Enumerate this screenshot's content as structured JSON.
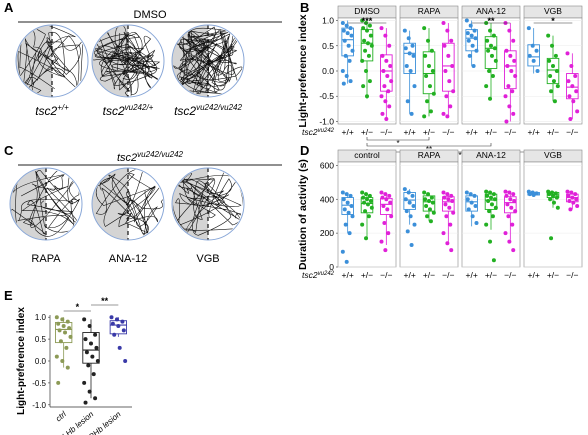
{
  "panel_labels": {
    "A": "A",
    "B": "B",
    "C": "C",
    "D": "D",
    "E": "E"
  },
  "colors": {
    "wt": "#3b8fd9",
    "het": "#22b022",
    "hom": "#e020d8",
    "ctrl": "#8c9a56",
    "lhb": "#222222",
    "rhb": "#3a3aa8",
    "strip": "#e6e6e6",
    "arena_shade": "#d4d4d4",
    "arena_border": "#8aa8d8"
  },
  "panel_a": {
    "header": "DMSO",
    "arenas": [
      {
        "genotype_base": "tsc2",
        "genotype_sup": "+/+"
      },
      {
        "genotype_base": "tsc2",
        "genotype_sup": "vu242/+"
      },
      {
        "genotype_base": "tsc2",
        "genotype_sup": "vu242/vu242"
      }
    ]
  },
  "panel_c": {
    "header_base": "tsc2",
    "header_sup": "vu242/vu242",
    "arenas": [
      {
        "label": "RAPA"
      },
      {
        "label": "ANA-12"
      },
      {
        "label": "VGB"
      }
    ]
  },
  "chart_data": [
    {
      "id": "B",
      "type": "box-strip",
      "ylabel": "Light-preference index",
      "ylim": [
        -1.05,
        1.05
      ],
      "yticks": [
        "1.0",
        "0.5",
        "0.0",
        "-0.5",
        "-1.0"
      ],
      "ytick_values": [
        1.0,
        0.5,
        0.0,
        -0.5,
        -1.0
      ],
      "genotype_row_label": "tsc2",
      "genotype_row_sup": "vu242",
      "categories": [
        "+/+",
        "+/−",
        "−/−"
      ],
      "facets": [
        {
          "title": "DMSO",
          "boxes": [
            {
              "q1": 0.3,
              "median": 0.62,
              "q3": 0.85,
              "lo": -0.25,
              "hi": 1.0
            },
            {
              "q1": 0.2,
              "median": 0.55,
              "q3": 0.82,
              "lo": -0.55,
              "hi": 1.0
            },
            {
              "q1": -0.4,
              "median": 0.0,
              "q3": 0.32,
              "lo": -0.95,
              "hi": 0.85
            }
          ],
          "points": [
            [
              0.95,
              0.9,
              0.85,
              0.8,
              0.75,
              0.7,
              0.6,
              0.5,
              0.4,
              0.3,
              0.2,
              0.0,
              -0.1,
              -0.2,
              -0.25
            ],
            [
              1.0,
              0.95,
              0.9,
              0.85,
              0.8,
              0.7,
              0.6,
              0.55,
              0.5,
              0.4,
              0.3,
              0.2,
              0.0,
              -0.2,
              -0.3,
              -0.5
            ],
            [
              0.85,
              0.7,
              0.5,
              0.3,
              0.2,
              0.1,
              0.0,
              -0.1,
              -0.2,
              -0.3,
              -0.4,
              -0.5,
              -0.6,
              -0.7,
              -0.85,
              -0.95
            ]
          ],
          "annotations": [
            {
              "text": "***",
              "from": 0,
              "to": 2
            }
          ]
        },
        {
          "title": "RAPA",
          "boxes": [
            {
              "q1": -0.05,
              "median": 0.35,
              "q3": 0.55,
              "lo": -0.85,
              "hi": 0.8
            },
            {
              "q1": -0.45,
              "median": -0.05,
              "q3": 0.38,
              "lo": -0.9,
              "hi": 0.85
            },
            {
              "q1": -0.4,
              "median": 0.1,
              "q3": 0.55,
              "lo": -0.9,
              "hi": 0.95
            }
          ],
          "points": [
            [
              0.8,
              0.65,
              0.5,
              0.45,
              0.35,
              0.3,
              0.1,
              0.0,
              -0.3,
              -0.6,
              -0.85
            ],
            [
              0.85,
              0.6,
              0.4,
              0.3,
              0.1,
              0.0,
              -0.1,
              -0.3,
              -0.45,
              -0.6,
              -0.8,
              -0.9
            ],
            [
              0.95,
              0.8,
              0.6,
              0.5,
              0.3,
              0.1,
              0.0,
              -0.2,
              -0.4,
              -0.5,
              -0.7,
              -0.85,
              -0.9
            ]
          ],
          "annotations": []
        },
        {
          "title": "ANA-12",
          "boxes": [
            {
              "q1": 0.4,
              "median": 0.65,
              "q3": 0.82,
              "lo": 0.1,
              "hi": 1.0
            },
            {
              "q1": 0.05,
              "median": 0.45,
              "q3": 0.68,
              "lo": -0.55,
              "hi": 0.95
            },
            {
              "q1": -0.35,
              "median": 0.1,
              "q3": 0.4,
              "lo": -1.0,
              "hi": 0.95
            }
          ],
          "points": [
            [
              1.0,
              0.9,
              0.8,
              0.75,
              0.7,
              0.65,
              0.6,
              0.5,
              0.4,
              0.3,
              0.1
            ],
            [
              0.95,
              0.8,
              0.7,
              0.6,
              0.5,
              0.45,
              0.4,
              0.3,
              0.2,
              0.0,
              -0.1,
              -0.3,
              -0.55
            ],
            [
              0.95,
              0.8,
              0.6,
              0.4,
              0.3,
              0.2,
              0.1,
              0.0,
              -0.1,
              -0.3,
              -0.4,
              -0.5,
              -0.7,
              -0.85,
              -1.0
            ]
          ],
          "annotations": [
            {
              "text": "**",
              "from": 0,
              "to": 2
            }
          ]
        },
        {
          "title": "VGB",
          "boxes": [
            {
              "q1": 0.1,
              "median": 0.28,
              "q3": 0.52,
              "lo": -0.05,
              "hi": 0.85
            },
            {
              "q1": -0.25,
              "median": 0.02,
              "q3": 0.25,
              "lo": -0.6,
              "hi": 0.7
            },
            {
              "q1": -0.55,
              "median": -0.32,
              "q3": -0.05,
              "lo": -0.95,
              "hi": 0.35
            }
          ],
          "points": [
            [
              0.85,
              0.5,
              0.4,
              0.3,
              0.2,
              0.0
            ],
            [
              0.7,
              0.5,
              0.3,
              0.2,
              0.1,
              0.0,
              -0.1,
              -0.2,
              -0.3,
              -0.4,
              -0.6
            ],
            [
              0.35,
              0.1,
              -0.1,
              -0.2,
              -0.3,
              -0.4,
              -0.5,
              -0.6,
              -0.8,
              -0.95
            ]
          ],
          "annotations": [
            {
              "text": "*",
              "from": 0,
              "to": 2
            }
          ]
        }
      ],
      "between_facet_annotations": [
        {
          "text": "*",
          "from_facet": 0,
          "to_facet": 1
        },
        {
          "text": "**",
          "from_facet": 0,
          "to_facet": 2
        },
        {
          "text": "*",
          "from_facet": 0,
          "to_facet": 3
        }
      ]
    },
    {
      "id": "D",
      "type": "box-strip",
      "ylabel": "Duration of activity (s)",
      "ylim": [
        0,
        620
      ],
      "yticks": [
        "600",
        "400",
        "200",
        "0"
      ],
      "ytick_values": [
        600,
        400,
        200,
        0
      ],
      "genotype_row_label": "tsc2",
      "genotype_row_sup": "vu242",
      "categories": [
        "+/+",
        "+/−",
        "−/−"
      ],
      "facets": [
        {
          "title": "control",
          "boxes": [
            {
              "q1": 310,
              "median": 365,
              "q3": 410,
              "lo": 200,
              "hi": 440
            },
            {
              "q1": 320,
              "median": 375,
              "q3": 410,
              "lo": 170,
              "hi": 440
            },
            {
              "q1": 310,
              "median": 370,
              "q3": 405,
              "lo": 130,
              "hi": 440
            }
          ],
          "points": [
            [
              440,
              430,
              420,
              400,
              380,
              360,
              340,
              320,
              300,
              250,
              200,
              90,
              30
            ],
            [
              440,
              430,
              420,
              410,
              400,
              390,
              380,
              370,
              350,
              330,
              300,
              250,
              170
            ],
            [
              440,
              430,
              420,
              410,
              400,
              380,
              360,
              340,
              300,
              260,
              200,
              150,
              100
            ]
          ],
          "annotations": []
        },
        {
          "title": "RAPA",
          "boxes": [
            {
              "q1": 340,
              "median": 395,
              "q3": 440,
              "lo": 250,
              "hi": 460
            },
            {
              "q1": 330,
              "median": 385,
              "q3": 420,
              "lo": 270,
              "hi": 440
            },
            {
              "q1": 330,
              "median": 385,
              "q3": 415,
              "lo": 140,
              "hi": 440
            }
          ],
          "points": [
            [
              460,
              440,
              420,
              400,
              380,
              360,
              330,
              300,
              250,
              210,
              130
            ],
            [
              440,
              430,
              410,
              400,
              390,
              380,
              360,
              340,
              320,
              300,
              270
            ],
            [
              440,
              430,
              420,
              410,
              400,
              390,
              370,
              350,
              320,
              300,
              250,
              200,
              140,
              100
            ]
          ],
          "annotations": []
        },
        {
          "title": "ANA-12",
          "boxes": [
            {
              "q1": 330,
              "median": 385,
              "q3": 420,
              "lo": 240,
              "hi": 440
            },
            {
              "q1": 340,
              "median": 395,
              "q3": 430,
              "lo": 220,
              "hi": 445
            },
            {
              "q1": 320,
              "median": 380,
              "q3": 415,
              "lo": 160,
              "hi": 445
            }
          ],
          "points": [
            [
              440,
              430,
              420,
              400,
              380,
              360,
              340,
              300,
              260
            ],
            [
              445,
              440,
              430,
              420,
              410,
              400,
              390,
              370,
              350,
              330,
              300,
              250,
              150,
              40
            ],
            [
              445,
              440,
              430,
              420,
              400,
              390,
              370,
              350,
              330,
              300,
              250,
              200,
              150,
              100
            ]
          ],
          "annotations": []
        },
        {
          "title": "VGB",
          "boxes": [
            {
              "q1": 425,
              "median": 432,
              "q3": 440,
              "lo": 420,
              "hi": 445
            },
            {
              "q1": 410,
              "median": 425,
              "q3": 440,
              "lo": 350,
              "hi": 445
            },
            {
              "q1": 385,
              "median": 410,
              "q3": 430,
              "lo": 340,
              "hi": 445
            }
          ],
          "points": [
            [
              445,
              440,
              435,
              430,
              425
            ],
            [
              445,
              440,
              435,
              430,
              420,
              410,
              400,
              380,
              350,
              170
            ],
            [
              445,
              440,
              430,
              420,
              410,
              400,
              390,
              380,
              360,
              340
            ]
          ],
          "annotations": []
        }
      ]
    },
    {
      "id": "E",
      "type": "box-strip",
      "ylabel": "Light-preference index",
      "ylim": [
        -1.05,
        1.05
      ],
      "yticks": [
        "1.0",
        "0.5",
        "0.0",
        "-0.5",
        "-1.0"
      ],
      "ytick_values": [
        1.0,
        0.5,
        0.0,
        -0.5,
        -1.0
      ],
      "categories": [
        "ctrl",
        "LHb lesion",
        "RHb lesion"
      ],
      "boxes": [
        {
          "q1": 0.42,
          "median": 0.72,
          "q3": 0.88,
          "lo": -0.15,
          "hi": 1.0
        },
        {
          "q1": -0.05,
          "median": 0.25,
          "q3": 0.65,
          "lo": -0.85,
          "hi": 0.95
        },
        {
          "q1": 0.62,
          "median": 0.82,
          "q3": 0.92,
          "lo": 0.55,
          "hi": 1.0
        }
      ],
      "points": [
        [
          1.0,
          0.95,
          0.9,
          0.85,
          0.8,
          0.75,
          0.7,
          0.65,
          0.55,
          0.45,
          0.3,
          0.1,
          0.0,
          -0.15,
          -0.5
        ],
        [
          0.95,
          0.8,
          0.6,
          0.5,
          0.4,
          0.3,
          0.2,
          0.1,
          0.0,
          -0.1,
          -0.3,
          -0.5,
          -0.7,
          -0.85,
          -0.95
        ],
        [
          1.0,
          0.95,
          0.9,
          0.85,
          0.8,
          0.7,
          0.6,
          0.3,
          0.0
        ]
      ],
      "annotations": [
        {
          "text": "*",
          "from": 0,
          "to": 1
        },
        {
          "text": "**",
          "from": 1,
          "to": 2
        }
      ]
    }
  ]
}
